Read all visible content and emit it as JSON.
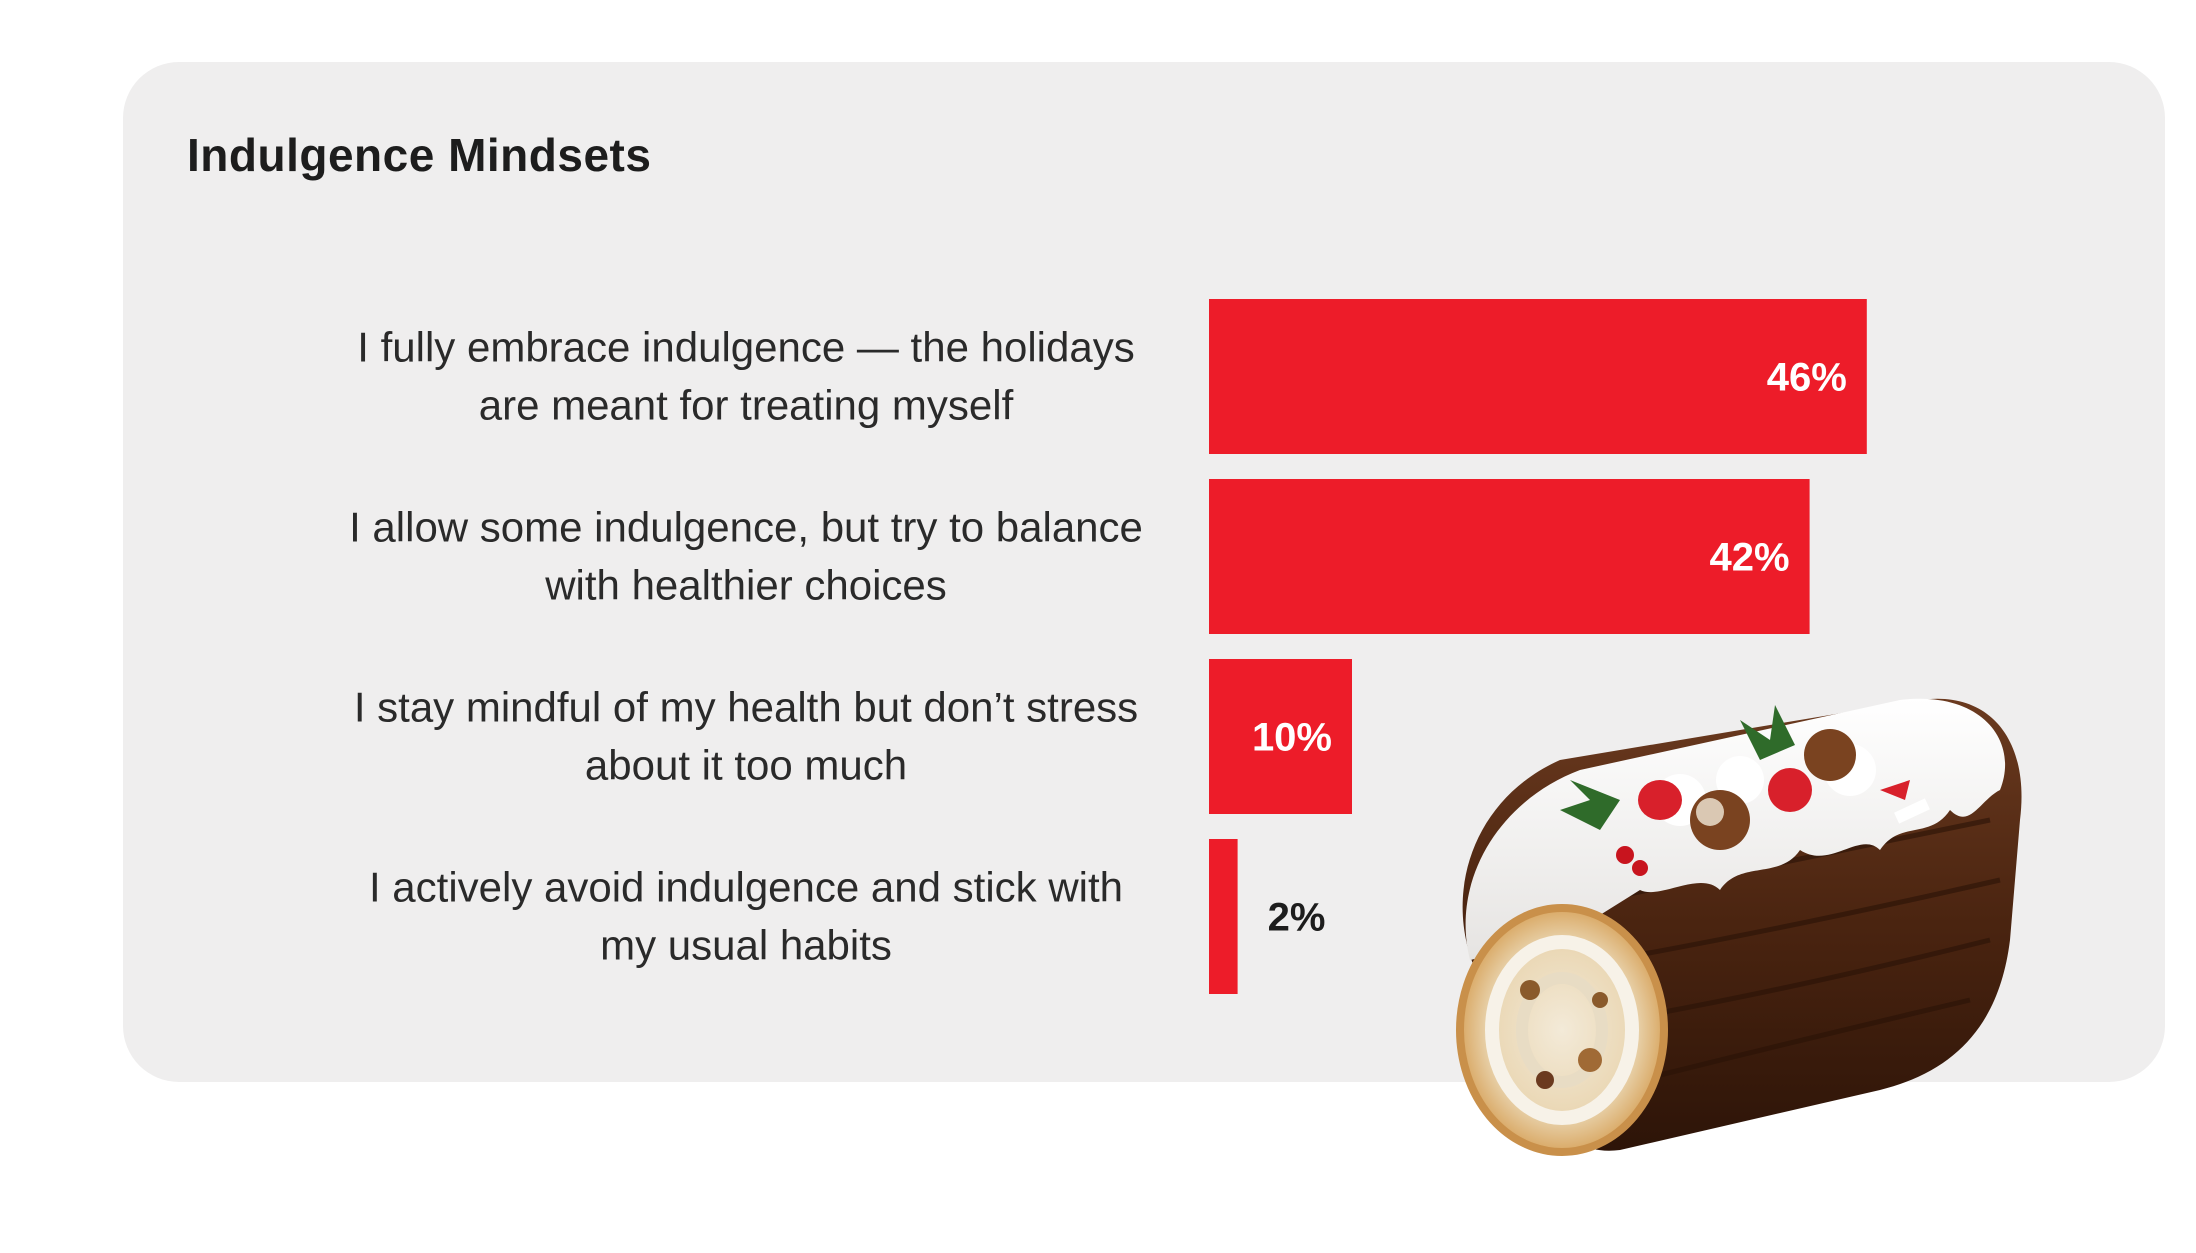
{
  "chart_data": {
    "type": "bar",
    "orientation": "horizontal",
    "title": "Indulgence Mindsets",
    "categories": [
      [
        "I fully embrace indulgence — the holidays",
        "are meant for treating myself"
      ],
      [
        "I allow some indulgence, but try to balance",
        "with healthier choices"
      ],
      [
        "I stay mindful of my health but don’t stress",
        "about it too much"
      ],
      [
        "I actively avoid indulgence and stick with",
        "my usual habits"
      ]
    ],
    "values": [
      46,
      42,
      10,
      2
    ],
    "value_labels": [
      "46%",
      "42%",
      "10%",
      "2%"
    ],
    "unit": "%",
    "bar_color": "#ed1c29",
    "grid": false,
    "legend": "none"
  },
  "decoration": {
    "image": "christmas-yule-log-cake"
  }
}
